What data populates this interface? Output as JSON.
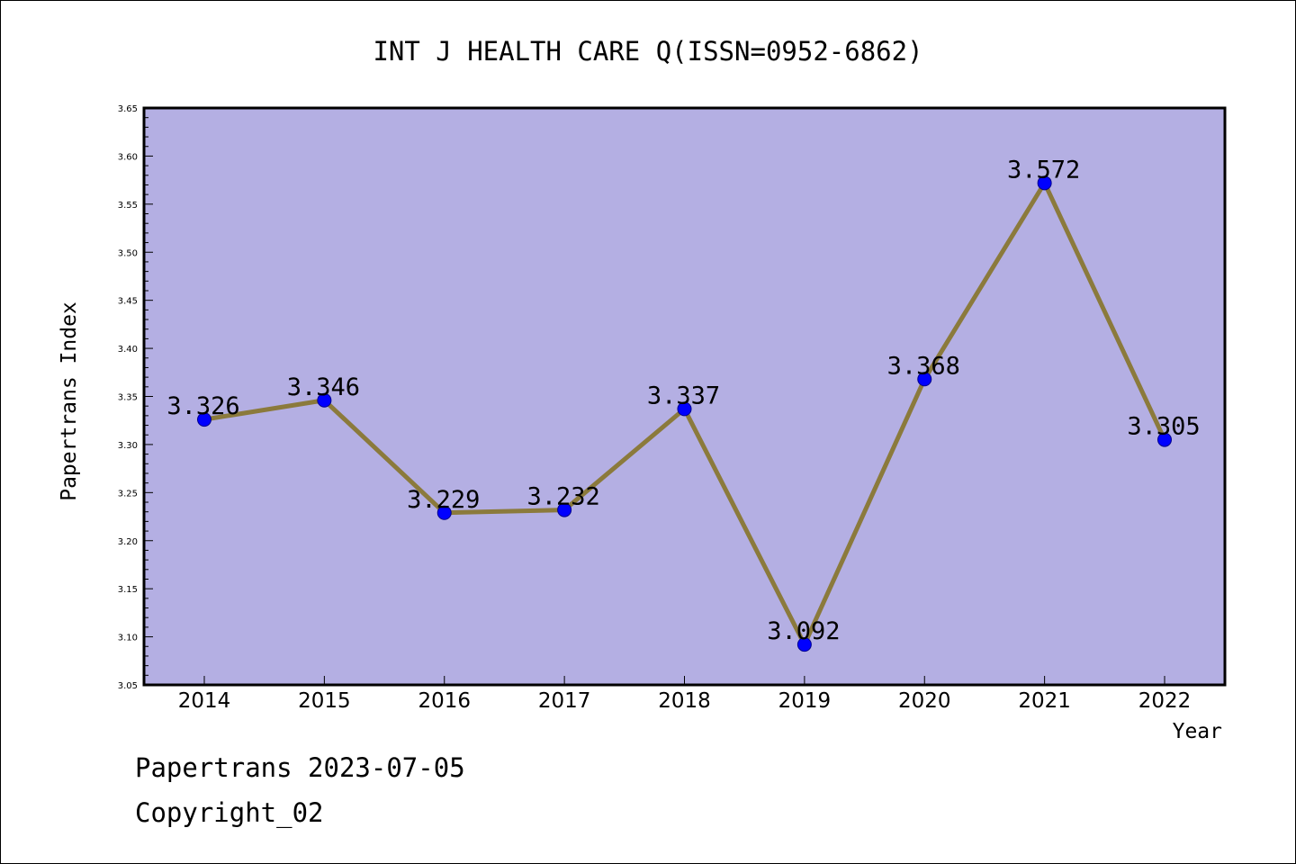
{
  "chart_data": {
    "type": "line",
    "title": "INT J HEALTH CARE Q(ISSN=0952-6862)",
    "xlabel": "Year",
    "ylabel": "Papertrans Index",
    "categories": [
      "2014",
      "2015",
      "2016",
      "2017",
      "2018",
      "2019",
      "2020",
      "2021",
      "2022"
    ],
    "series": [
      {
        "values": [
          3.326,
          3.346,
          3.229,
          3.232,
          3.337,
          3.092,
          3.368,
          3.572,
          3.305
        ],
        "labels": [
          "3.326",
          "3.346",
          "3.229",
          "3.232",
          "3.337",
          "3.092",
          "3.368",
          "3.572",
          "3.305"
        ]
      }
    ],
    "ylim": [
      3.05,
      3.65
    ],
    "yticks": [
      "3.05",
      "3.10",
      "3.15",
      "3.20",
      "3.25",
      "3.30",
      "3.35",
      "3.40",
      "3.45",
      "3.50",
      "3.55",
      "3.60",
      "3.65"
    ],
    "grid": false,
    "colors": {
      "plot_bg": "#b4afe3",
      "line": "#8b7a3c",
      "marker": "#0000ff"
    }
  },
  "footer": {
    "line1": "Papertrans 2023-07-05",
    "line2": "Copyright_02"
  }
}
